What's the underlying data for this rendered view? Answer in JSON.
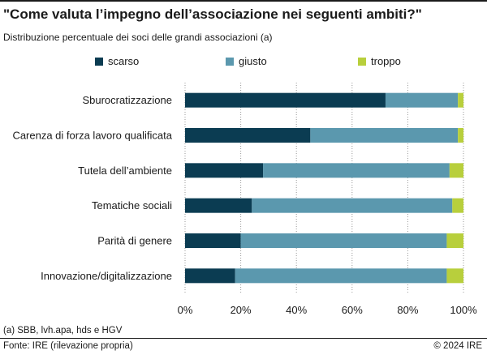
{
  "header": {
    "title": "\"Come valuta l’impegno dell’associazione nei seguenti ambiti?\"",
    "subtitle": "Distribuzione percentuale dei soci delle grandi associazioni (a)"
  },
  "footer": {
    "footnote": "(a) SBB, lvh.apa, hds e HGV",
    "source": "Fonte: IRE (rilevazione propria)",
    "copyright": "© 2024 IRE"
  },
  "chart_data": {
    "type": "bar",
    "orientation": "horizontal",
    "stacked": true,
    "categories": [
      "Sburocratizzazione",
      "Carenza di forza lavoro qualificata",
      "Tutela dell’ambiente",
      "Tematiche sociali",
      "Parità di genere",
      "Innovazione/digitalizzazione"
    ],
    "series": [
      {
        "name": "scarso",
        "color": "#0b3c52",
        "values": [
          72,
          45,
          28,
          24,
          20,
          18
        ]
      },
      {
        "name": "giusto",
        "color": "#5b98ae",
        "values": [
          26,
          53,
          67,
          72,
          74,
          76
        ]
      },
      {
        "name": "troppo",
        "color": "#b8cf3c",
        "values": [
          2,
          2,
          5,
          4,
          6,
          6
        ]
      }
    ],
    "xlim": [
      0,
      100
    ],
    "xticks": [
      "0%",
      "20%",
      "40%",
      "60%",
      "80%",
      "100%"
    ],
    "grid": true,
    "legend": "top"
  }
}
